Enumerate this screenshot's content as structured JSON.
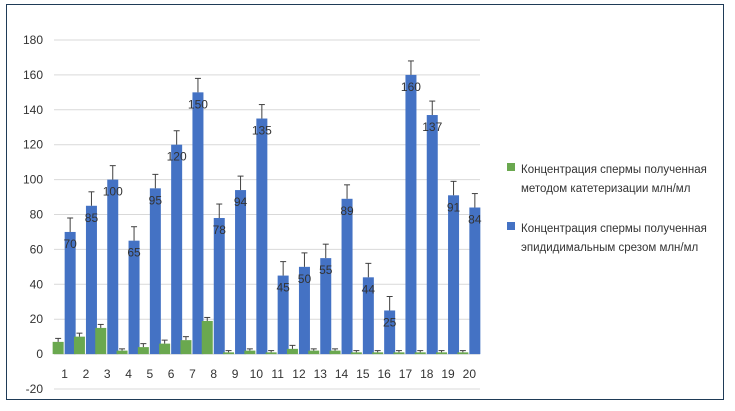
{
  "chart_data": {
    "type": "bar",
    "categories": [
      "1",
      "2",
      "3",
      "4",
      "5",
      "6",
      "7",
      "8",
      "9",
      "10",
      "11",
      "12",
      "13",
      "14",
      "15",
      "16",
      "17",
      "18",
      "19",
      "20"
    ],
    "series": [
      {
        "name": "Концентрация спермы полученная методом катетеризации млн/мл",
        "color": "#6aa84f",
        "values": [
          7,
          10,
          15,
          2,
          4,
          6,
          8,
          19,
          1,
          2,
          1,
          3,
          2,
          2,
          1,
          1,
          1,
          1,
          1,
          1
        ],
        "errors": [
          2,
          2,
          2,
          1,
          2,
          2,
          2,
          2,
          1,
          1,
          1,
          2,
          1,
          1,
          1,
          1,
          1,
          1,
          1,
          1
        ]
      },
      {
        "name": "Концентрация спермы полученная эпидидимальным срезом млн/мл",
        "color": "#4472c4",
        "values": [
          70,
          85,
          100,
          65,
          95,
          120,
          150,
          78,
          94,
          135,
          45,
          50,
          55,
          89,
          44,
          25,
          160,
          137,
          91,
          84
        ],
        "errors": [
          8,
          8,
          8,
          8,
          8,
          8,
          8,
          8,
          8,
          8,
          8,
          8,
          8,
          8,
          8,
          8,
          8,
          8,
          8,
          8
        ],
        "data_labels": [
          "70",
          "85",
          "100",
          "65",
          "95",
          "120",
          "150",
          "78",
          "94",
          "135",
          "45",
          "50",
          "55",
          "89",
          "44",
          "25",
          "160",
          "137",
          "91",
          "84"
        ]
      }
    ],
    "ylim": [
      -20,
      180
    ],
    "yticks": [
      -20,
      0,
      20,
      40,
      60,
      80,
      100,
      120,
      140,
      160,
      180
    ],
    "grid": true,
    "legend_position": "right",
    "title": "",
    "xlabel": "",
    "ylabel": ""
  }
}
